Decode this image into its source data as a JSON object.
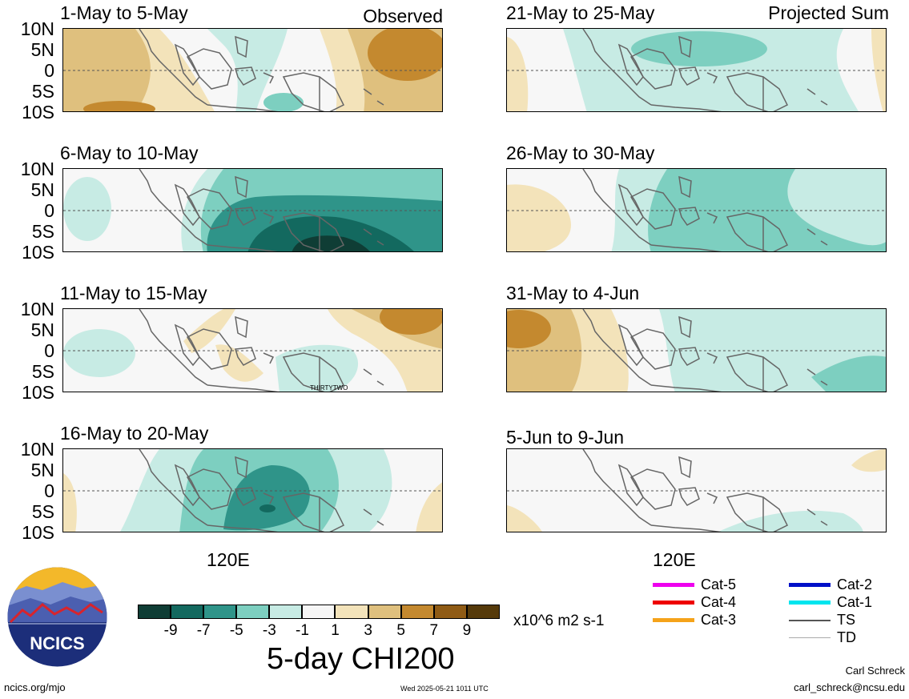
{
  "panels": [
    {
      "title": "1-May to 5-May",
      "label": "Observed"
    },
    {
      "title": "6-May to 10-May",
      "label": ""
    },
    {
      "title": "11-May to 15-May",
      "label": "",
      "note": "THIRTYTWO"
    },
    {
      "title": "16-May to 20-May",
      "label": ""
    },
    {
      "title": "21-May to 25-May",
      "label": "Projected Sum"
    },
    {
      "title": "26-May to 30-May",
      "label": ""
    },
    {
      "title": "31-May to 4-Jun",
      "label": ""
    },
    {
      "title": "5-Jun to 9-Jun",
      "label": ""
    }
  ],
  "y_ticks": [
    "10N",
    "5N",
    "0",
    "5S",
    "10S"
  ],
  "x_tick": "120E",
  "colorbar": {
    "colors": [
      "#0f3d35",
      "#13695f",
      "#2f9489",
      "#7dcfc0",
      "#c7ebe4",
      "#f6f6f6",
      "#f3e3ba",
      "#dfc07e",
      "#c4892f",
      "#8f5b15",
      "#553a0a"
    ],
    "ticks": [
      "-9",
      "-7",
      "-5",
      "-3",
      "-1",
      "1",
      "3",
      "5",
      "7",
      "9"
    ],
    "units": "x10^6 m2 s-1",
    "title": "5-day CHI200"
  },
  "legend": [
    {
      "label": "Cat-5",
      "color": "#ee00ee"
    },
    {
      "label": "Cat-4",
      "color": "#ee0000"
    },
    {
      "label": "Cat-3",
      "color": "#f5a31a"
    },
    {
      "label": "Cat-2",
      "color": "#0010c8"
    },
    {
      "label": "Cat-1",
      "color": "#00e5ee"
    },
    {
      "label": "TS",
      "color": "#555555"
    },
    {
      "label": "TD",
      "color": "#aaaaaa"
    }
  ],
  "logo": {
    "text": "NCICS"
  },
  "footer": {
    "url": "ncics.org/mjo",
    "timestamp": "Wed 2025-05-21 1011 UTC",
    "author": "Carl Schreck",
    "email": "carl_schreck@ncsu.edu"
  }
}
